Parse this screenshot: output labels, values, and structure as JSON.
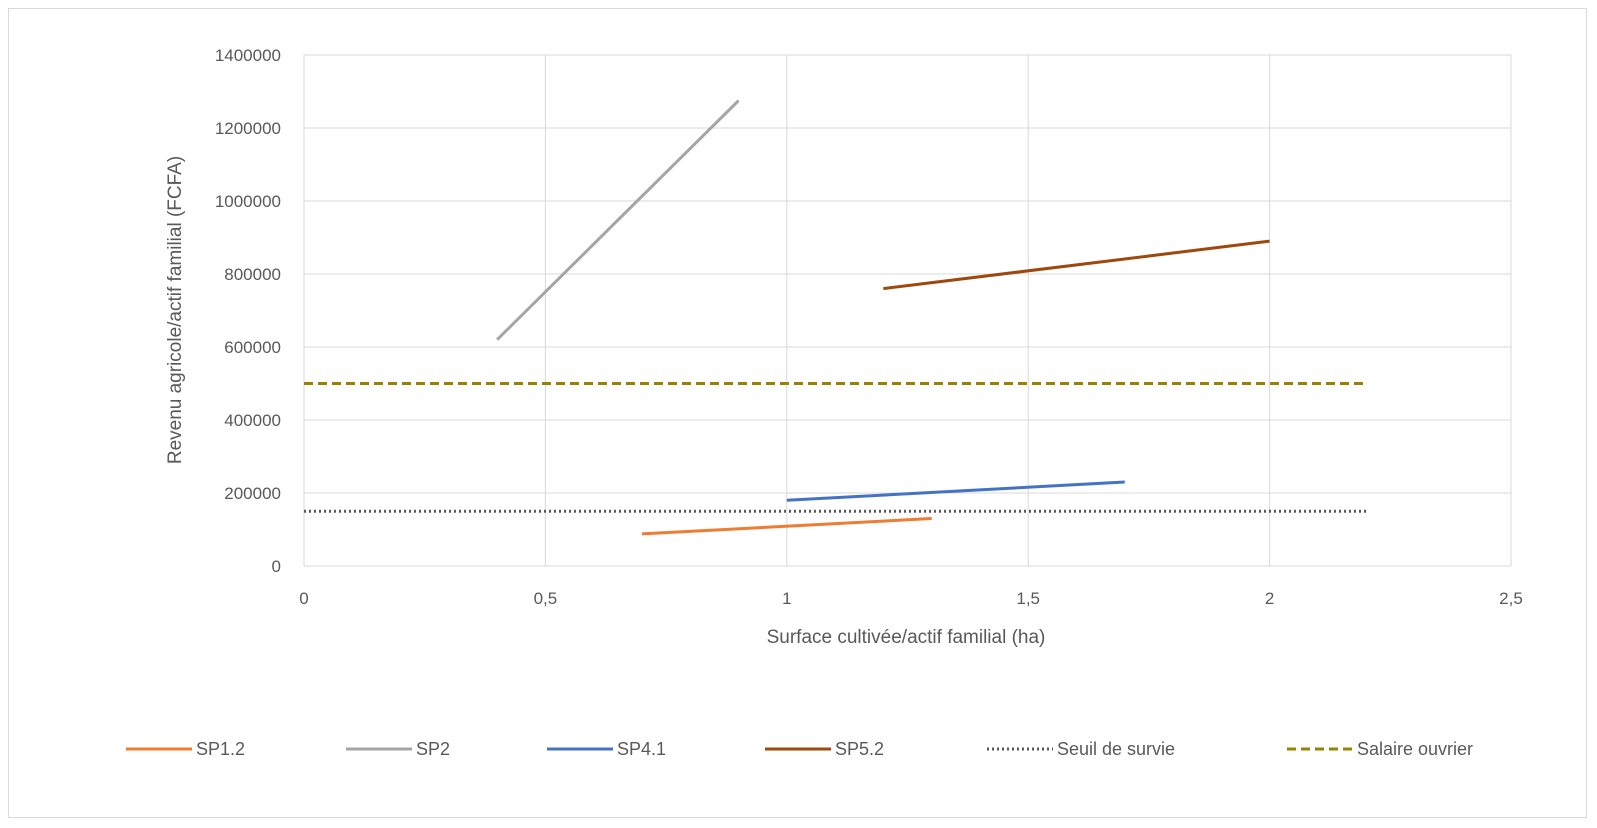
{
  "chart_data": {
    "type": "line",
    "title": "",
    "xlabel": "Surface cultivée/actif familial (ha)",
    "ylabel": "Revenu agricole/actif familial (FCFA)",
    "xlim": [
      0,
      2.5
    ],
    "ylim": [
      0,
      1400000
    ],
    "x_ticks": [
      0,
      0.5,
      1,
      1.5,
      2,
      2.5
    ],
    "x_tick_labels": [
      "0",
      "0,5",
      "1",
      "1,5",
      "2",
      "2,5"
    ],
    "y_ticks": [
      0,
      200000,
      400000,
      600000,
      800000,
      1000000,
      1200000,
      1400000
    ],
    "y_tick_labels": [
      "0",
      "200000",
      "400000",
      "600000",
      "800000",
      "1000000",
      "1200000",
      "1400000"
    ],
    "grid": true,
    "legend_position": "bottom",
    "series": [
      {
        "name": "SP1.2",
        "color": "#ED7D31",
        "style": "solid",
        "x": [
          0.7,
          1.3
        ],
        "y": [
          88000,
          130000
        ]
      },
      {
        "name": "SP2",
        "color": "#A5A5A5",
        "style": "solid",
        "x": [
          0.4,
          0.9
        ],
        "y": [
          620000,
          1275000
        ]
      },
      {
        "name": "SP4.1",
        "color": "#4472C4",
        "style": "solid",
        "x": [
          1.0,
          1.7
        ],
        "y": [
          180000,
          230000
        ]
      },
      {
        "name": "SP5.2",
        "color": "#9E480E",
        "style": "solid",
        "x": [
          1.2,
          2.0
        ],
        "y": [
          760000,
          890000
        ]
      },
      {
        "name": "Seuil de survie",
        "color": "#595959",
        "style": "dotted",
        "x": [
          0,
          2.2
        ],
        "y": [
          150000,
          150000
        ]
      },
      {
        "name": "Salaire ouvrier",
        "color": "#9C8000",
        "style": "dashed",
        "x": [
          0,
          2.2
        ],
        "y": [
          500000,
          500000
        ]
      }
    ]
  }
}
